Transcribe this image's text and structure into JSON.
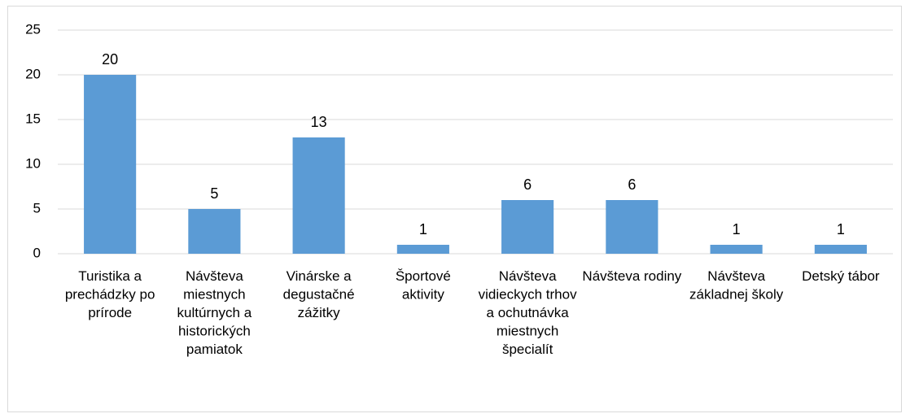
{
  "chart_data": {
    "type": "bar",
    "categories": [
      "Turistika a prechádzky po prírode",
      "Návšteva miestnych kultúrnych a historických pamiatok",
      "Vinárske a degustačné zážitky",
      "Športové aktivity",
      "Návšteva vidieckych trhov a ochutnávka miestnych špecialít",
      "Návšteva rodiny",
      "Návšteva základnej školy",
      "Detský tábor"
    ],
    "values": [
      20,
      5,
      13,
      1,
      6,
      6,
      1,
      1
    ],
    "color": "#5b9bd5",
    "ylim": [
      0,
      25
    ],
    "yticks": [
      0,
      5,
      10,
      15,
      20,
      25
    ],
    "grid": true,
    "data_labels": true
  }
}
